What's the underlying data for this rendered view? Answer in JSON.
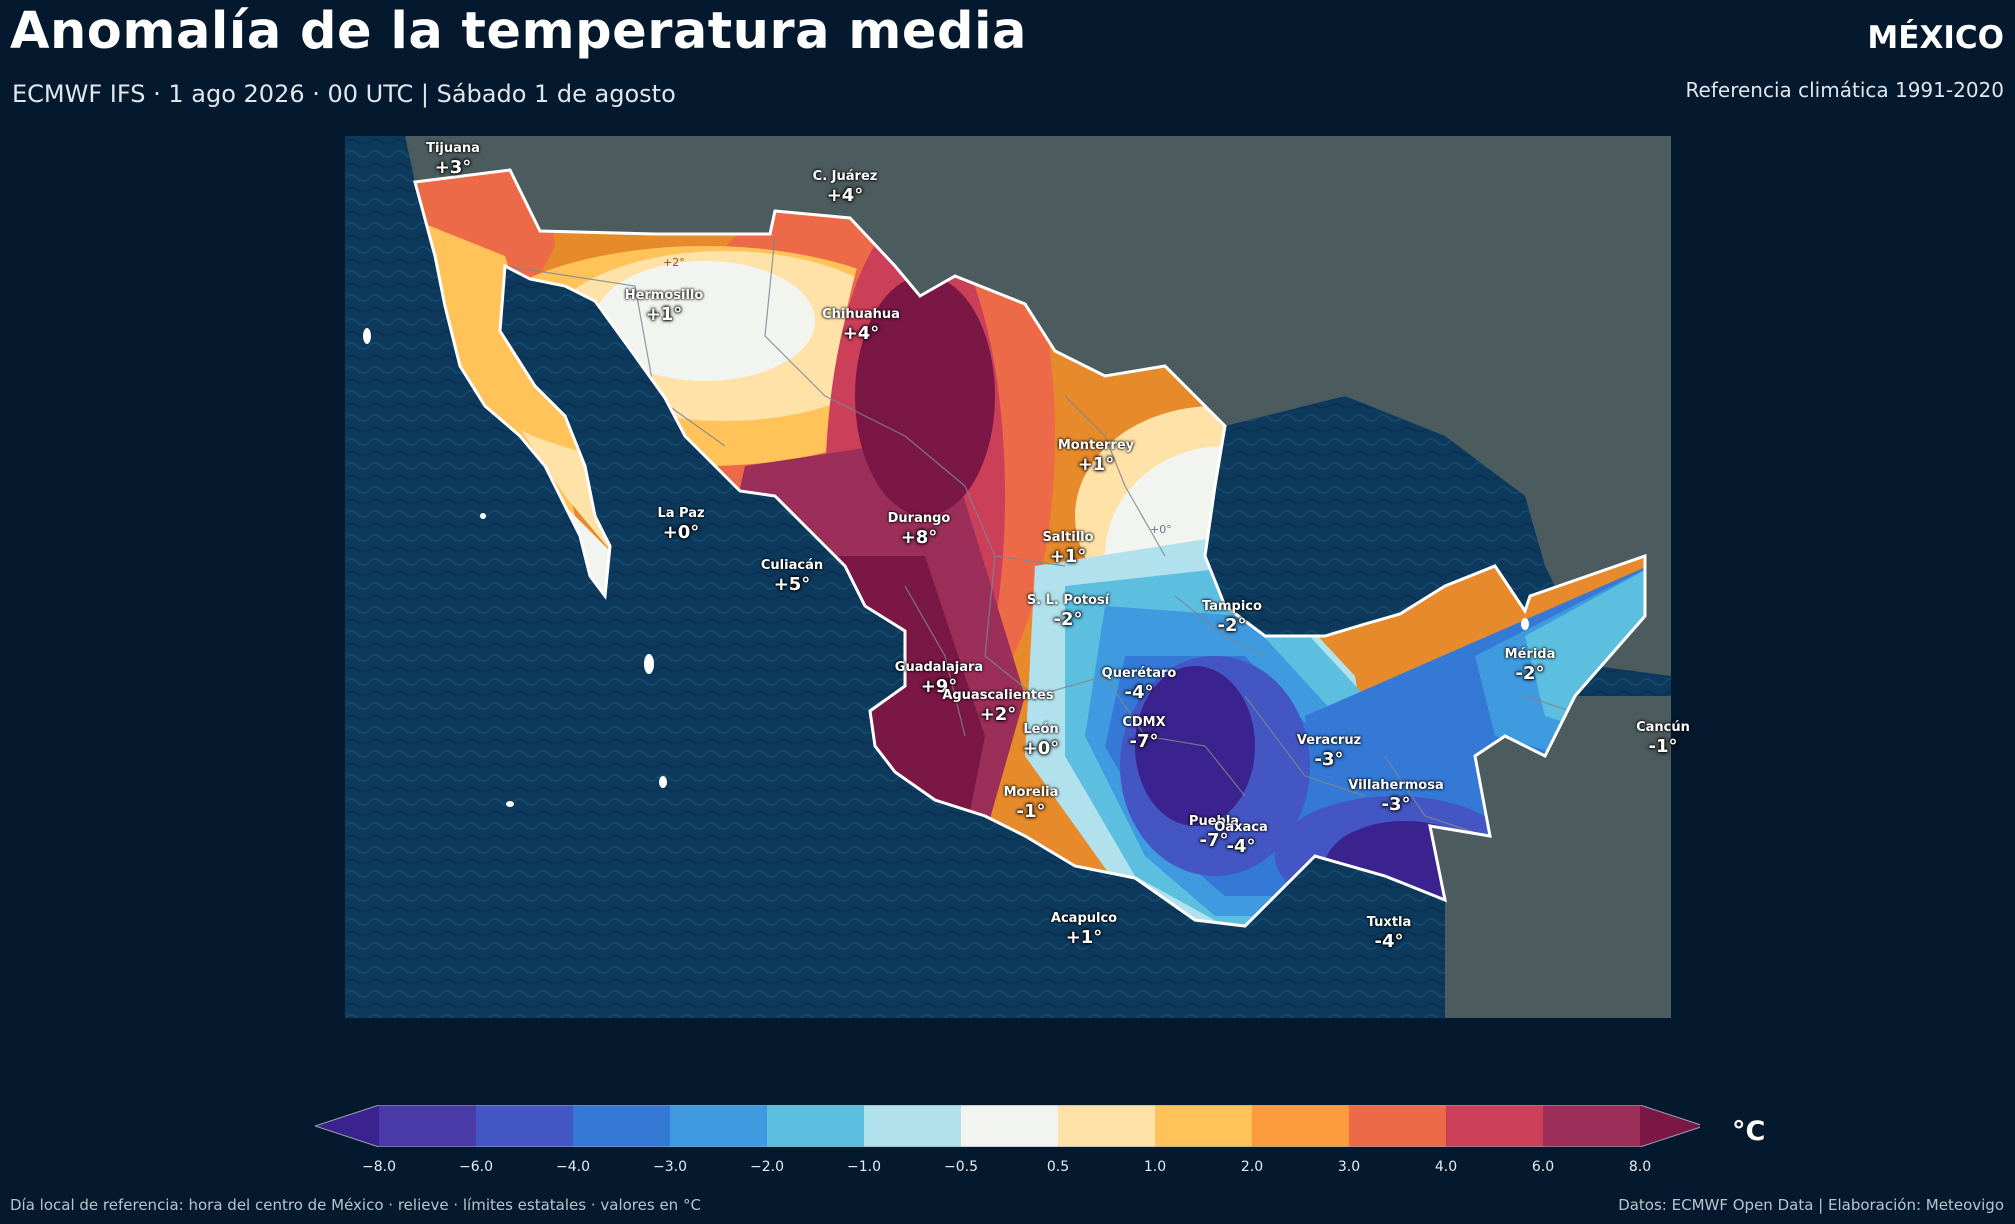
{
  "header": {
    "title": "Anomalía de la temperatura media",
    "subtitle": "ECMWF IFS · 1 ago 2026 · 00 UTC  |  Sábado 1 de agosto",
    "country": "MÉXICO",
    "reference": "Referencia climática 1991-2020"
  },
  "cities": [
    {
      "name": "Tijuana",
      "value": "+3°"
    },
    {
      "name": "C. Juárez",
      "value": "+4°"
    },
    {
      "name": "Hermosillo",
      "value": "+1°"
    },
    {
      "name": "Chihuahua",
      "value": "+4°"
    },
    {
      "name": "Monterrey",
      "value": "+1°"
    },
    {
      "name": "La Paz",
      "value": "+0°"
    },
    {
      "name": "Durango",
      "value": "+8°"
    },
    {
      "name": "Saltillo",
      "value": "+1°"
    },
    {
      "name": "Culiacán",
      "value": "+5°"
    },
    {
      "name": "S. L. Potosí",
      "value": "-2°"
    },
    {
      "name": "Tampico",
      "value": "-2°"
    },
    {
      "name": "Mérida",
      "value": "-2°"
    },
    {
      "name": "Querétaro",
      "value": "-4°"
    },
    {
      "name": "Guadalajara",
      "value": "+9°"
    },
    {
      "name": "Aguascalientes",
      "value": "+2°"
    },
    {
      "name": "León",
      "value": "+0°"
    },
    {
      "name": "CDMX",
      "value": "-7°"
    },
    {
      "name": "Cancún",
      "value": "-1°"
    },
    {
      "name": "Veracruz",
      "value": "-3°"
    },
    {
      "name": "Villahermosa",
      "value": "-3°"
    },
    {
      "name": "Morelia",
      "value": "-1°"
    },
    {
      "name": "Puebla",
      "value": "-7°"
    },
    {
      "name": "Oaxaca",
      "value": "-4°"
    },
    {
      "name": "Acapulco",
      "value": "+1°"
    },
    {
      "name": "Tuxtla",
      "value": "-4°"
    }
  ],
  "contour_labels": [
    "+2°",
    "+0°"
  ],
  "colorbar": {
    "unit": "°C",
    "ticks": [
      "−8.0",
      "−6.0",
      "−4.0",
      "−3.0",
      "−2.0",
      "−1.0",
      "−0.5",
      "0.5",
      "1.0",
      "2.0",
      "3.0",
      "4.0",
      "6.0",
      "8.0"
    ],
    "colors": [
      "#3a238e",
      "#4a3aa8",
      "#4356c4",
      "#3479d6",
      "#3f9ae0",
      "#5cbfe0",
      "#b1e1ec",
      "#f2f4ef",
      "#ffe2a8",
      "#ffc35a",
      "#fc9a3e",
      "#ec6a48",
      "#cc3f59",
      "#9b2f5a",
      "#7a1745"
    ],
    "legend_position": "bottom"
  },
  "footer": {
    "left": "Día local de referencia: hora del centro de México · relieve · límites estatales · valores en °C",
    "right": "Datos: ECMWF Open Data | Elaboración: Meteovigo"
  }
}
